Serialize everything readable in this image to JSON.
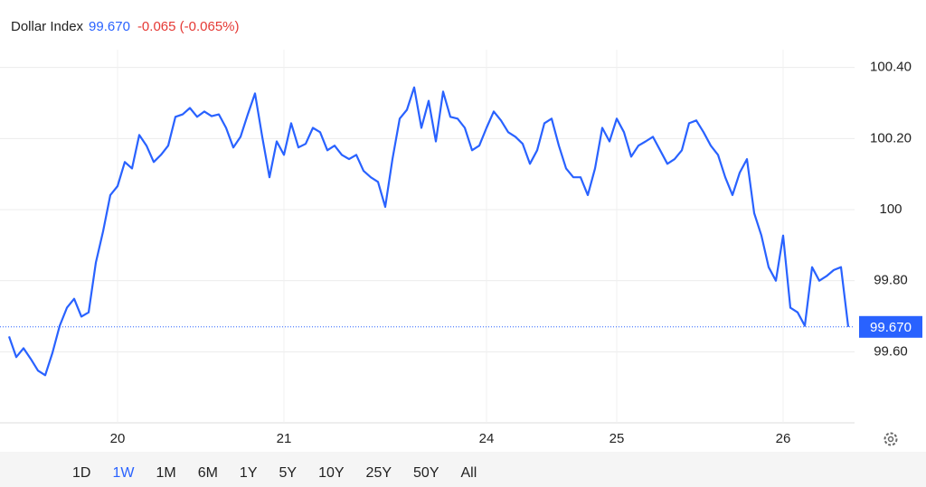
{
  "chart_data": {
    "type": "line",
    "title": "Dollar Index",
    "last": {
      "value": 99.67,
      "label": "99.670"
    },
    "change": "-0.065 (-0.065%)",
    "color": "#2962ff",
    "ylim": [
      99.4,
      100.45
    ],
    "yticks": [
      {
        "value": 99.6,
        "label": "99.60"
      },
      {
        "value": 99.8,
        "label": "99.80"
      },
      100,
      {
        "value": 100.2,
        "label": "100.20"
      },
      {
        "value": 100.4,
        "label": "100.40"
      }
    ],
    "xlim": [
      0,
      116
    ],
    "xticks": [
      {
        "value": 15,
        "label": "20"
      },
      {
        "value": 38,
        "label": "21"
      },
      {
        "value": 66,
        "label": "24"
      },
      {
        "value": 84,
        "label": "25"
      },
      {
        "value": 107,
        "label": "26"
      }
    ],
    "grid": true,
    "values": [
      99.643,
      99.585,
      99.61,
      99.58,
      99.547,
      99.534,
      99.597,
      99.673,
      99.724,
      99.749,
      99.699,
      99.711,
      99.851,
      99.939,
      100.041,
      100.066,
      100.134,
      100.116,
      100.21,
      100.18,
      100.134,
      100.154,
      100.18,
      100.261,
      100.268,
      100.286,
      100.261,
      100.276,
      100.263,
      100.268,
      100.23,
      100.175,
      100.205,
      100.268,
      100.327,
      100.205,
      100.091,
      100.192,
      100.154,
      100.243,
      100.175,
      100.185,
      100.23,
      100.218,
      100.167,
      100.18,
      100.154,
      100.142,
      100.154,
      100.109,
      100.091,
      100.078,
      100.008,
      100.142,
      100.256,
      100.281,
      100.344,
      100.23,
      100.306,
      100.192,
      100.332,
      100.261,
      100.256,
      100.23,
      100.167,
      100.18,
      100.23,
      100.276,
      100.251,
      100.218,
      100.205,
      100.185,
      100.129,
      100.167,
      100.243,
      100.256,
      100.18,
      100.116,
      100.091,
      100.091,
      100.041,
      100.116,
      100.23,
      100.192,
      100.256,
      100.218,
      100.149,
      100.18,
      100.192,
      100.205,
      100.167,
      100.129,
      100.142,
      100.167,
      100.243,
      100.251,
      100.218,
      100.18,
      100.154,
      100.091,
      100.041,
      100.104,
      100.142,
      99.99,
      99.927,
      99.838,
      99.8,
      99.927,
      99.724,
      99.711,
      99.673,
      99.838,
      99.8,
      99.813,
      99.83,
      99.838,
      99.67
    ],
    "ranges": [
      "1D",
      "1W",
      "1M",
      "6M",
      "1Y",
      "5Y",
      "10Y",
      "25Y",
      "50Y",
      "All"
    ],
    "selected_range": "1W"
  }
}
